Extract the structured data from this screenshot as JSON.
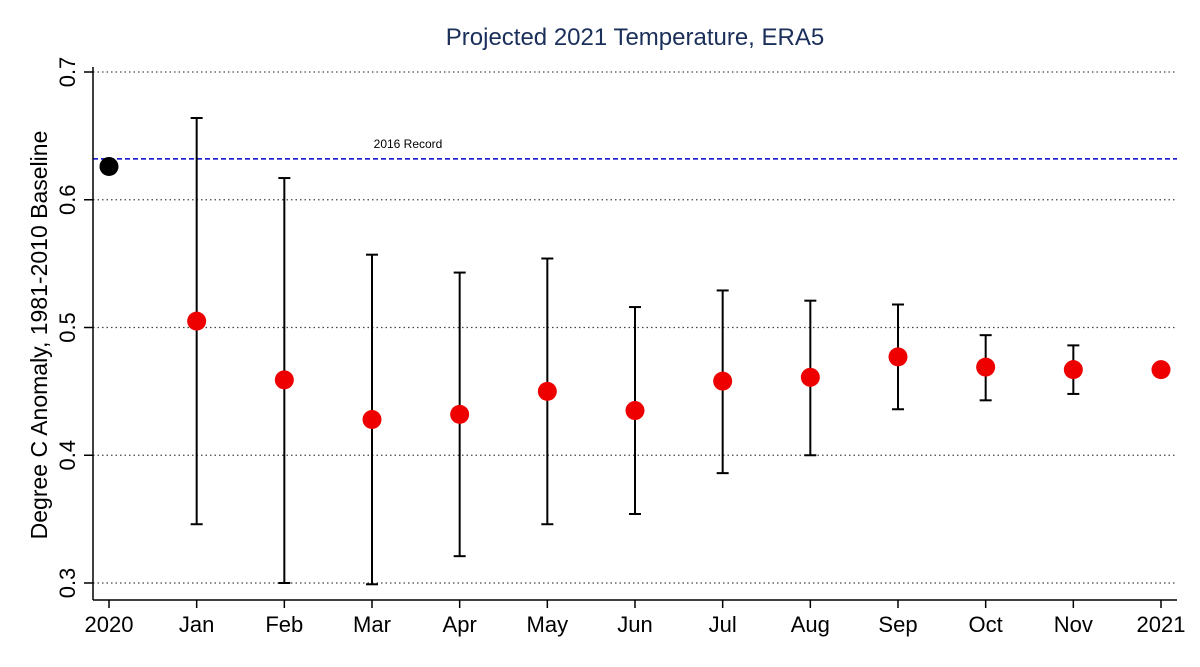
{
  "chart_data": {
    "type": "scatter",
    "title": "Projected 2021 Temperature, ERA5",
    "xlabel": "",
    "ylabel": "Degree C Anomaly, 1981-2010 Baseline",
    "categories": [
      "2020",
      "Jan",
      "Feb",
      "Mar",
      "Apr",
      "May",
      "Jun",
      "Jul",
      "Aug",
      "Sep",
      "Oct",
      "Nov",
      "2021"
    ],
    "ylim": [
      0.3,
      0.7
    ],
    "yticks": [
      0.3,
      0.4,
      0.5,
      0.6,
      0.7
    ],
    "ytick_labels": [
      "0.3",
      "0.4",
      "0.5",
      "0.6",
      "0.7"
    ],
    "grid": "horizontal dotted",
    "points": [
      {
        "x": "2020",
        "value": 0.626,
        "color": "#000000"
      },
      {
        "x": "Jan",
        "value": 0.505,
        "low": 0.346,
        "high": 0.664,
        "color": "#ee0000"
      },
      {
        "x": "Feb",
        "value": 0.459,
        "low": 0.3,
        "high": 0.617,
        "color": "#ee0000"
      },
      {
        "x": "Mar",
        "value": 0.428,
        "low": 0.299,
        "high": 0.557,
        "color": "#ee0000"
      },
      {
        "x": "Apr",
        "value": 0.432,
        "low": 0.321,
        "high": 0.543,
        "color": "#ee0000"
      },
      {
        "x": "May",
        "value": 0.45,
        "low": 0.346,
        "high": 0.554,
        "color": "#ee0000"
      },
      {
        "x": "Jun",
        "value": 0.435,
        "low": 0.354,
        "high": 0.516,
        "color": "#ee0000"
      },
      {
        "x": "Jul",
        "value": 0.458,
        "low": 0.386,
        "high": 0.529,
        "color": "#ee0000"
      },
      {
        "x": "Aug",
        "value": 0.461,
        "low": 0.4,
        "high": 0.521,
        "color": "#ee0000"
      },
      {
        "x": "Sep",
        "value": 0.477,
        "low": 0.436,
        "high": 0.518,
        "color": "#ee0000"
      },
      {
        "x": "Oct",
        "value": 0.469,
        "low": 0.443,
        "high": 0.494,
        "color": "#ee0000"
      },
      {
        "x": "Nov",
        "value": 0.467,
        "low": 0.448,
        "high": 0.486,
        "color": "#ee0000"
      },
      {
        "x": "2021",
        "value": 0.467,
        "color": "#ee0000"
      }
    ],
    "reference_line": {
      "value": 0.632,
      "label": "2016 Record",
      "color": "#0000cc",
      "style": "dashed"
    },
    "colors": {
      "title": "#1a2f5a",
      "axis": "#000000",
      "grid": "#444444"
    }
  }
}
